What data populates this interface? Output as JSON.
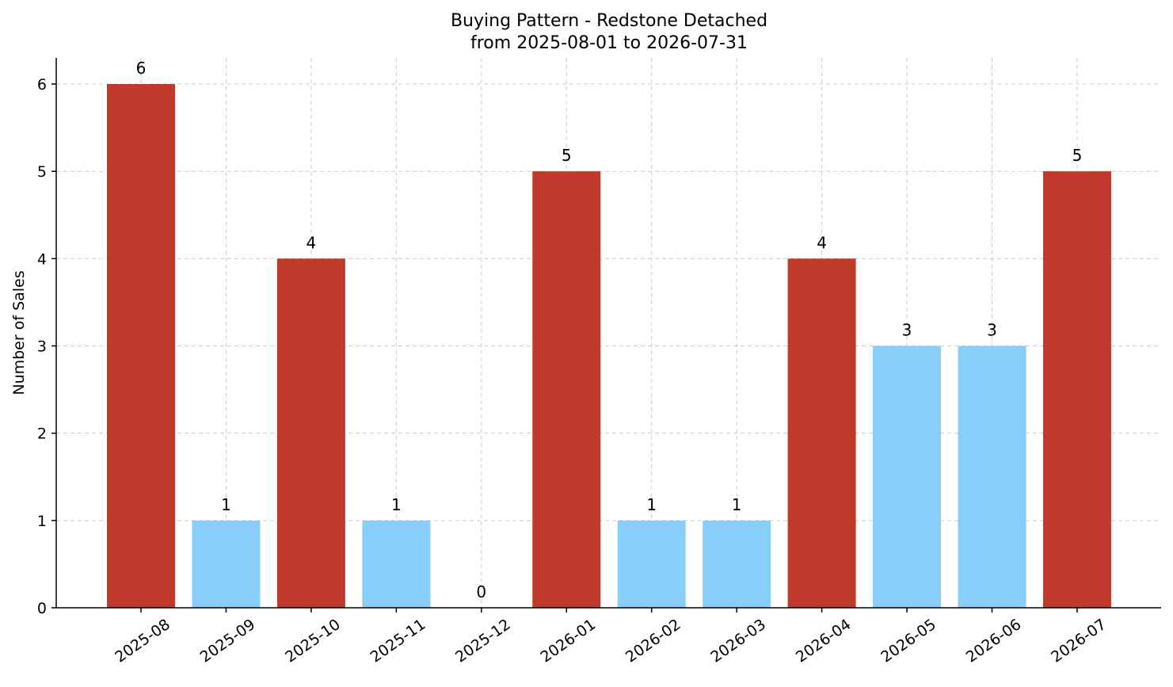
{
  "chart_data": {
    "type": "bar",
    "title": "Buying Pattern - Redstone Detached",
    "subtitle": "from 2025-08-01 to 2026-07-31",
    "xlabel": "",
    "ylabel": "Number of Sales",
    "categories": [
      "2025-08",
      "2025-09",
      "2025-10",
      "2025-11",
      "2025-12",
      "2026-01",
      "2026-02",
      "2026-03",
      "2026-04",
      "2026-05",
      "2026-06",
      "2026-07"
    ],
    "values": [
      6,
      1,
      4,
      1,
      0,
      5,
      1,
      1,
      4,
      3,
      3,
      5
    ],
    "ylim": [
      0,
      6.3
    ],
    "yticks": [
      0,
      1,
      2,
      3,
      4,
      5,
      6
    ],
    "grid": true,
    "data_labels": true,
    "colors": {
      "high": "#c0392b",
      "low": "#87cefa"
    },
    "color_threshold": 4
  }
}
